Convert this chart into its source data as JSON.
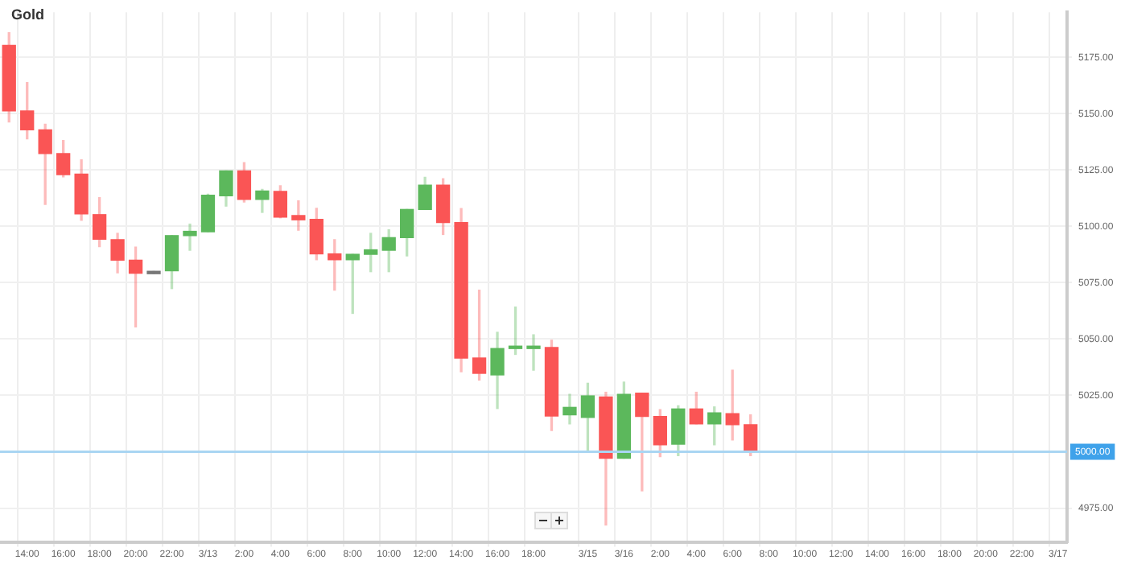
{
  "chart_data": {
    "type": "candlestick",
    "title": "Gold",
    "categories": [
      null,
      "14:00",
      null,
      "16:00",
      null,
      "18:00",
      null,
      "20:00",
      null,
      "22:00",
      null,
      "3/13",
      null,
      "2:00",
      null,
      "4:00",
      null,
      "6:00",
      null,
      "8:00",
      null,
      "10:00",
      null,
      "12:00",
      null,
      "14:00",
      null,
      "16:00",
      null,
      "18:00",
      null,
      null,
      "3/15",
      null,
      "3/16",
      null,
      "2:00",
      null,
      "4:00",
      null,
      "6:00",
      null,
      "8:00",
      null,
      "10:00",
      null,
      "12:00",
      null,
      "14:00",
      null,
      "16:00",
      null,
      "18:00",
      null,
      "20:00",
      null,
      "22:00",
      null,
      "3/17"
    ],
    "ohlc": [
      [
        5180.3,
        5185.9,
        5146.3,
        5151.2
      ],
      [
        5151.2,
        5163.8,
        5138.8,
        5142.8
      ],
      [
        5142.8,
        5145.3,
        5109.7,
        5132.3
      ],
      [
        5132.3,
        5138.1,
        5122.0,
        5122.9
      ],
      [
        5123.2,
        5129.5,
        5102.7,
        5105.5
      ],
      [
        5105.2,
        5112.7,
        5091.0,
        5094.3
      ],
      [
        5094.1,
        5096.9,
        5079.4,
        5085.0
      ],
      [
        5085.0,
        5090.8,
        5055.4,
        5079.2
      ],
      [
        5080.0,
        5080.0,
        5079.0,
        5079.0
      ],
      [
        5080.3,
        5095.9,
        5072.4,
        5095.9
      ],
      [
        5095.9,
        5101.0,
        5089.4,
        5097.8
      ],
      [
        5097.6,
        5114.3,
        5097.6,
        5113.8
      ],
      [
        5113.6,
        5124.6,
        5109.0,
        5124.6
      ],
      [
        5124.6,
        5128.3,
        5110.8,
        5112.0
      ],
      [
        5112.0,
        5116.4,
        5106.2,
        5115.7
      ],
      [
        5115.5,
        5118.0,
        5103.8,
        5104.1
      ],
      [
        5104.8,
        5111.3,
        5098.3,
        5102.9
      ],
      [
        5103.1,
        5108.0,
        5085.2,
        5087.8
      ],
      [
        5087.8,
        5094.1,
        5071.7,
        5085.2
      ],
      [
        5085.2,
        5087.6,
        5061.4,
        5087.6
      ],
      [
        5087.6,
        5096.9,
        5079.9,
        5089.6
      ],
      [
        5089.4,
        5098.5,
        5079.9,
        5095.0
      ],
      [
        5095.0,
        5107.5,
        5086.9,
        5107.5
      ],
      [
        5107.5,
        5121.8,
        5107.5,
        5118.3
      ],
      [
        5118.3,
        5121.1,
        5096.4,
        5101.7
      ],
      [
        5101.7,
        5107.9,
        5035.5,
        5041.6
      ],
      [
        5041.6,
        5071.7,
        5031.8,
        5034.8
      ],
      [
        5034.1,
        5053.0,
        5019.2,
        5045.8
      ],
      [
        5045.8,
        5064.2,
        5043.2,
        5046.0
      ],
      [
        5045.8,
        5051.9,
        5036.2,
        5046.0
      ],
      [
        5046.3,
        5049.5,
        5009.4,
        5015.9
      ],
      [
        5016.4,
        5025.5,
        5012.4,
        5019.7
      ],
      [
        5015.2,
        5030.4,
        5000.8,
        5024.8
      ],
      [
        5024.3,
        5026.4,
        4967.5,
        4997.1
      ],
      [
        4997.1,
        5030.9,
        4997.1,
        5025.5
      ],
      [
        5026.0,
        5026.0,
        4982.7,
        5015.7
      ],
      [
        5015.7,
        5018.7,
        4997.8,
        5003.1
      ],
      [
        5003.4,
        5020.4,
        4998.3,
        5019.0
      ],
      [
        5019.0,
        5026.4,
        5012.4,
        5012.4
      ],
      [
        5012.4,
        5019.9,
        5003.1,
        5017.3
      ],
      [
        5016.9,
        5036.2,
        5005.2,
        5012.0
      ],
      [
        5012.0,
        5016.4,
        4998.3,
        4999.9
      ],
      null,
      null,
      null,
      null,
      null,
      null,
      null,
      null,
      null,
      null,
      null,
      null,
      null,
      null,
      null,
      null,
      null
    ],
    "colors": [
      "#fa5555",
      "#fa5555",
      "#fa5555",
      "#fa5555",
      "#fa5555",
      "#fa5555",
      "#fa5555",
      "#fa5555",
      "#777777",
      "#5cb85c",
      "#5cb85c",
      "#5cb85c",
      "#5cb85c",
      "#fa5555",
      "#5cb85c",
      "#fa5555",
      "#fa5555",
      "#fa5555",
      "#fa5555",
      "#5cb85c",
      "#5cb85c",
      "#5cb85c",
      "#5cb85c",
      "#5cb85c",
      "#fa5555",
      "#fa5555",
      "#fa5555",
      "#5cb85c",
      "#5cb85c",
      "#5cb85c",
      "#fa5555",
      "#5cb85c",
      "#5cb85c",
      "#fa5555",
      "#5cb85c",
      "#fa5555",
      "#fa5555",
      "#5cb85c",
      "#fa5555",
      "#5cb85c",
      "#fa5555",
      "#fa5555",
      null,
      null,
      null,
      null,
      null,
      null,
      null,
      null,
      null,
      null,
      null,
      null,
      null,
      null,
      null,
      null,
      null
    ],
    "ylim": [
      4960,
      5195
    ],
    "yticks": [
      {
        "value": 4975,
        "label": "4975.00"
      },
      {
        "value": 5025,
        "label": "5025.00"
      },
      {
        "value": 5050,
        "label": "5050.00"
      },
      {
        "value": 5075,
        "label": "5075.00"
      },
      {
        "value": 5100,
        "label": "5100.00"
      },
      {
        "value": 5125,
        "label": "5125.00"
      },
      {
        "value": 5150,
        "label": "5150.00"
      },
      {
        "value": 5175,
        "label": "5175.00"
      }
    ],
    "ref_lines": [
      {
        "axis": "y",
        "value": 5000,
        "label": "5000.00",
        "color": "#a9d5f2"
      }
    ],
    "grid": true
  }
}
